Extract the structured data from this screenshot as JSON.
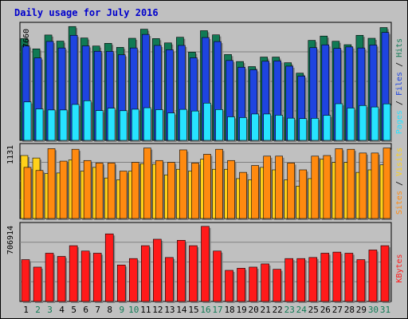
{
  "title": "Daily usage for July 2016",
  "colors": {
    "frame_bg": "#c0c0c0",
    "plot_bg": "#c0c0c0",
    "hits": "#117a55",
    "files": "#1e44e0",
    "pages": "#27e3ff",
    "visits": "#ffd11a",
    "sites": "#ff8a10",
    "kbytes": "#ff1a1a",
    "title": "#0000cc",
    "weekday_label": "#000000",
    "weekend_label": "#117a55"
  },
  "chart_data": [
    {
      "type": "bar",
      "panel": "top",
      "max_label": "7660",
      "legend": {
        "pages": "Pages",
        "files": "Files",
        "hits": "Hits",
        "separator": " / "
      },
      "categories": [
        "1",
        "2",
        "3",
        "4",
        "5",
        "6",
        "7",
        "8",
        "9",
        "10",
        "11",
        "12",
        "13",
        "14",
        "15",
        "16",
        "17",
        "18",
        "19",
        "20",
        "21",
        "22",
        "23",
        "24",
        "25",
        "26",
        "27",
        "28",
        "29",
        "30",
        "31"
      ],
      "series": [
        {
          "name": "Hits",
          "values": [
            6830,
            6140,
            7070,
            6660,
            7640,
            6870,
            6330,
            6510,
            6240,
            6850,
            7460,
            6830,
            6540,
            6920,
            5920,
            7360,
            7080,
            5760,
            5290,
            4950,
            5590,
            5590,
            5210,
            4510,
            6710,
            7000,
            6650,
            6420,
            7050,
            6850,
            7570
          ]
        },
        {
          "name": "Files",
          "values": [
            6340,
            5530,
            6640,
            6200,
            7050,
            6340,
            5980,
            5970,
            5740,
            6200,
            7110,
            6370,
            6080,
            6370,
            5540,
            6900,
            6630,
            5360,
            4910,
            4740,
            5310,
            5330,
            4980,
            4320,
            6220,
            6410,
            6170,
            6270,
            6200,
            6400,
            7240
          ]
        },
        {
          "name": "Pages",
          "values": [
            2580,
            2110,
            2040,
            2040,
            2410,
            2660,
            2000,
            2160,
            1990,
            2090,
            2190,
            2060,
            1840,
            2080,
            1970,
            2500,
            2070,
            1580,
            1530,
            1770,
            1770,
            1690,
            1490,
            1460,
            1480,
            1680,
            2460,
            2170,
            2340,
            2240,
            2450
          ]
        }
      ]
    },
    {
      "type": "bar",
      "panel": "middle",
      "max_label": "1131",
      "legend": {
        "sites": "Sites",
        "visits": "Visits",
        "separator": " / "
      },
      "categories": [
        "1",
        "2",
        "3",
        "4",
        "5",
        "6",
        "7",
        "8",
        "9",
        "10",
        "11",
        "12",
        "13",
        "14",
        "15",
        "16",
        "17",
        "18",
        "19",
        "20",
        "21",
        "22",
        "23",
        "24",
        "25",
        "26",
        "27",
        "28",
        "29",
        "30",
        "31"
      ],
      "series": [
        {
          "name": "Visits",
          "values": [
            1010,
            970,
            720,
            730,
            940,
            760,
            820,
            650,
            620,
            760,
            880,
            870,
            700,
            790,
            760,
            950,
            790,
            790,
            640,
            620,
            820,
            780,
            620,
            520,
            640,
            950,
            900,
            900,
            740,
            780,
            860
          ]
        },
        {
          "name": "Sites",
          "values": [
            820,
            770,
            1120,
            920,
            1110,
            930,
            890,
            890,
            760,
            900,
            1130,
            930,
            900,
            1100,
            890,
            1030,
            1110,
            930,
            740,
            850,
            1000,
            1000,
            890,
            780,
            1000,
            1010,
            1120,
            1110,
            1050,
            1050,
            1130
          ]
        }
      ]
    },
    {
      "type": "bar",
      "panel": "bottom",
      "max_label": "706914",
      "legend": {
        "kbytes": "KBytes"
      },
      "categories": [
        "1",
        "2",
        "3",
        "4",
        "5",
        "6",
        "7",
        "8",
        "9",
        "10",
        "11",
        "12",
        "13",
        "14",
        "15",
        "16",
        "17",
        "18",
        "19",
        "20",
        "21",
        "22",
        "23",
        "24",
        "25",
        "26",
        "27",
        "28",
        "29",
        "30",
        "31"
      ],
      "series": [
        {
          "name": "KBytes",
          "values": [
            390000,
            320000,
            450000,
            420000,
            520000,
            470000,
            450000,
            630000,
            340000,
            400000,
            520000,
            580000,
            410000,
            570000,
            520000,
            700000,
            470000,
            290000,
            310000,
            320000,
            350000,
            300000,
            400000,
            400000,
            410000,
            450000,
            460000,
            450000,
            390000,
            480000,
            520000
          ]
        }
      ]
    }
  ]
}
